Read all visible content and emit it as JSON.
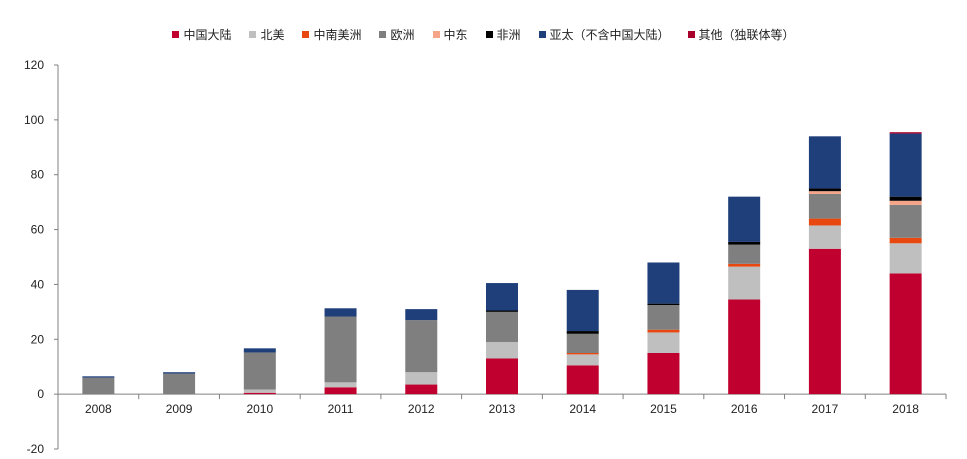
{
  "chart_data": {
    "type": "bar",
    "stacked": true,
    "categories": [
      "2008",
      "2009",
      "2010",
      "2011",
      "2012",
      "2013",
      "2014",
      "2015",
      "2016",
      "2017",
      "2018"
    ],
    "ylim": [
      -20,
      120
    ],
    "yticks": [
      -20,
      0,
      20,
      40,
      60,
      80,
      100,
      120
    ],
    "legend_position": "top-center",
    "series": [
      {
        "name": "中国大陆",
        "color": "#C0002F",
        "values": [
          0,
          0,
          0.5,
          2.5,
          3.5,
          13,
          10.5,
          15,
          34.5,
          53,
          44
        ]
      },
      {
        "name": "北美",
        "color": "#BFBFBF",
        "values": [
          0,
          0,
          1.2,
          1.8,
          4.5,
          6,
          4,
          7.5,
          12,
          8.5,
          11
        ]
      },
      {
        "name": "中南美洲",
        "color": "#E8470F",
        "values": [
          0,
          0,
          0,
          0,
          0,
          0,
          0.5,
          1,
          1,
          2.5,
          2
        ]
      },
      {
        "name": "欧洲",
        "color": "#7F7F7F",
        "values": [
          6,
          7.5,
          13.5,
          24,
          19,
          11,
          7,
          9,
          7,
          9,
          12
        ]
      },
      {
        "name": "中东",
        "color": "#F5A488",
        "values": [
          0,
          0,
          0,
          0,
          0,
          0,
          0,
          0,
          0,
          1,
          1.5
        ]
      },
      {
        "name": "非洲",
        "color": "#000000",
        "values": [
          0,
          0,
          0,
          0,
          0,
          0.5,
          1,
          0.5,
          1,
          1,
          1.5
        ]
      },
      {
        "name": "亚太（不含中国大陆）",
        "color": "#1F3F7A",
        "values": [
          0.5,
          0.5,
          1.5,
          3,
          4,
          10,
          15,
          15,
          16.5,
          19,
          23
        ]
      },
      {
        "name": "其他（独联体等）",
        "color": "#A8002A",
        "values": [
          0,
          0,
          0,
          0,
          0,
          0,
          0,
          0,
          0,
          0,
          0.5
        ]
      }
    ]
  }
}
